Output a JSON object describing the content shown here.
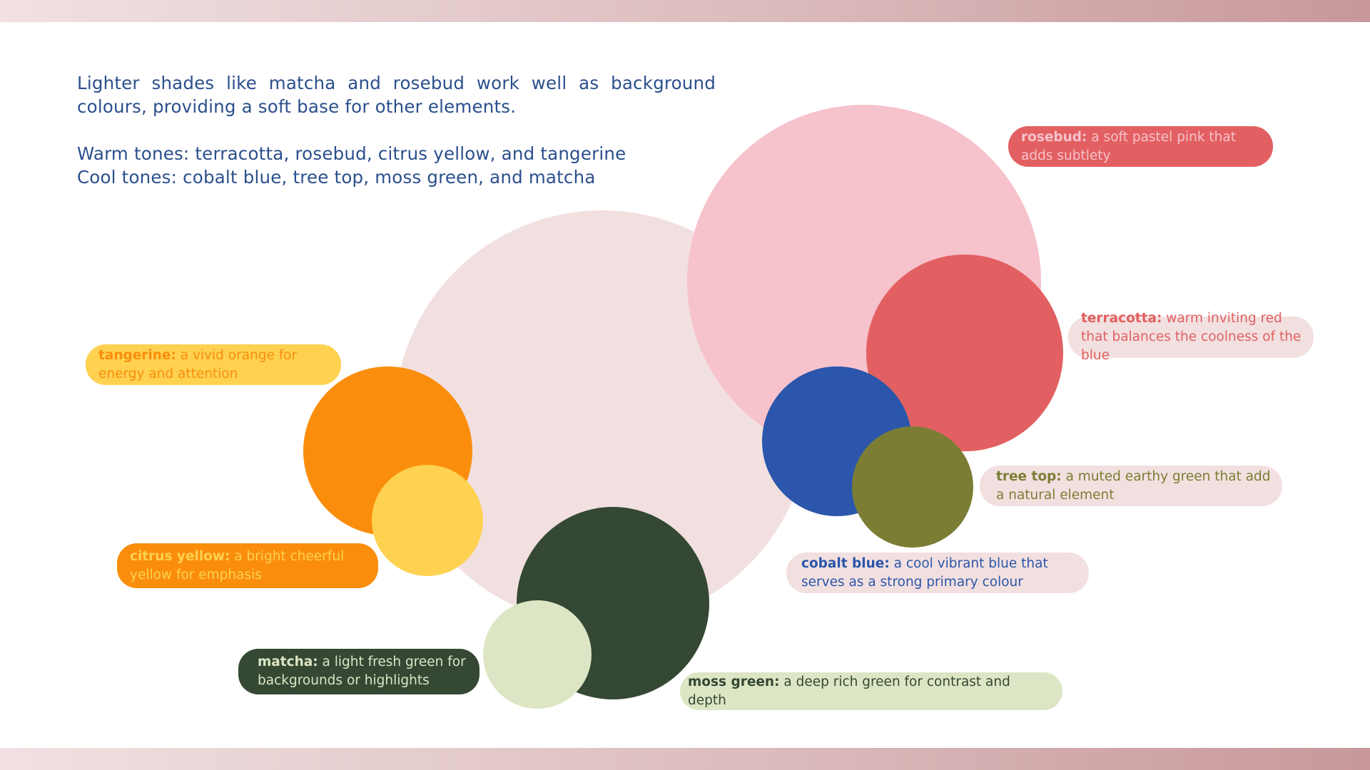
{
  "intro": {
    "paragraph": "Lighter shades like matcha and rosebud work well as background colours, providing a soft base for other elements.",
    "warm": "Warm tones: terracotta, rosebud, citrus yellow, and tangerine",
    "cool": "Cool tones: cobalt blue, tree top, moss green, and matcha"
  },
  "colors": {
    "blush": "#f2e0e0",
    "rosebud": "#f6c2cc",
    "terracotta": "#e26061",
    "cobalt": "#2b56ab",
    "treetop": "#7b7d35",
    "tangerine": "#fa8e0c",
    "citrus": "#fed150",
    "moss": "#344834",
    "matcha": "#dde6c4"
  },
  "labels": {
    "rosebud": {
      "name": "rosebud:",
      "desc": " a soft pastel pink that adds subtlety"
    },
    "terracotta": {
      "name": "terracotta:",
      "desc": " warm inviting red that balances the coolness of the blue"
    },
    "tree_top": {
      "name": "tree top:",
      "desc": " a muted earthy green that add a natural element"
    },
    "cobalt_blue": {
      "name": "cobalt blue:",
      "desc": " a cool vibrant blue that serves as a strong primary colour"
    },
    "tangerine": {
      "name": "tangerine:",
      "desc": " a vivid orange for energy and attention"
    },
    "citrus_yellow": {
      "name": "citrus yellow:",
      "desc": " a bright cheerful yellow for emphasis"
    },
    "matcha": {
      "name": "matcha:",
      "desc": " a light fresh green for backgrounds or highlights"
    },
    "moss_green": {
      "name": "moss green:",
      "desc": " a deep rich green for contrast and depth"
    }
  }
}
